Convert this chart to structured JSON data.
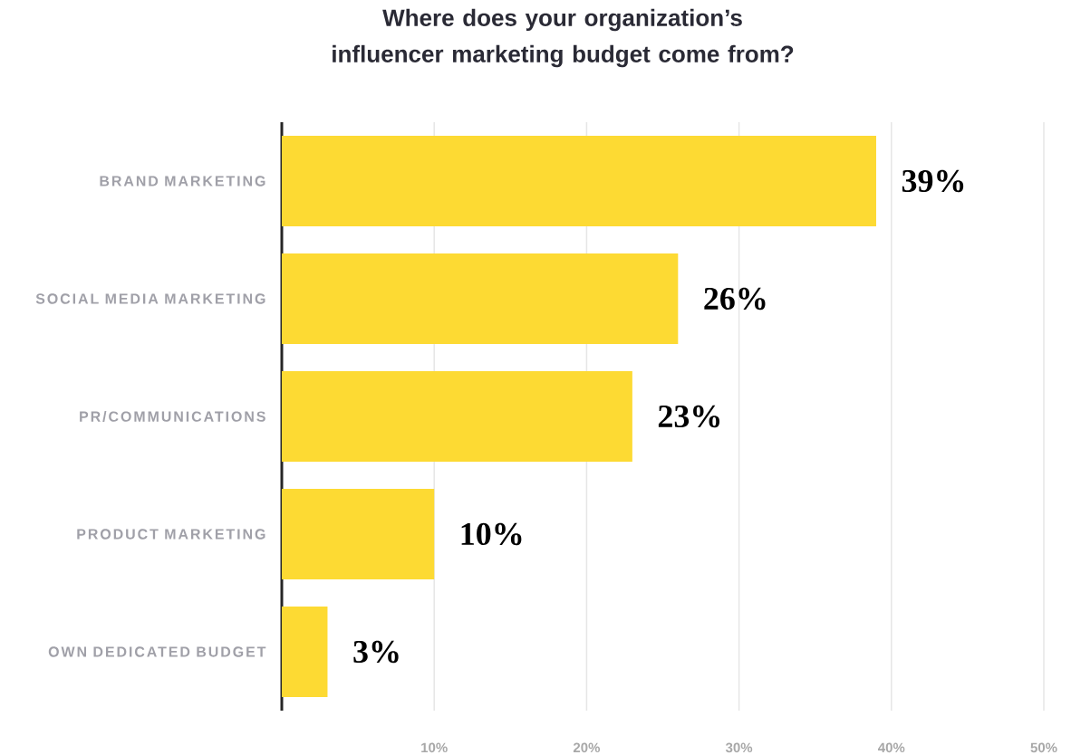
{
  "chart_data": {
    "type": "bar",
    "orientation": "horizontal",
    "title": "Where does your organization’s influencer marketing budget come from?",
    "categories": [
      "BRAND MARKETING",
      "SOCIAL MEDIA MARKETING",
      "PR/COMMUNICATIONS",
      "PRODUCT MARKETING",
      "OWN DEDICATED BUDGET"
    ],
    "values": [
      39,
      26,
      23,
      10,
      3
    ],
    "value_labels": [
      "39%",
      "26%",
      "23%",
      "10%",
      "3%"
    ],
    "color": "#fdda33",
    "xlim": [
      0,
      50
    ],
    "xticks": [
      {
        "value": 10,
        "label": "10%"
      },
      {
        "value": 20,
        "label": "20%"
      },
      {
        "value": 30,
        "label": "30%"
      },
      {
        "value": 40,
        "label": "40%"
      },
      {
        "value": 50,
        "label": "50%"
      }
    ],
    "grid": "x"
  }
}
